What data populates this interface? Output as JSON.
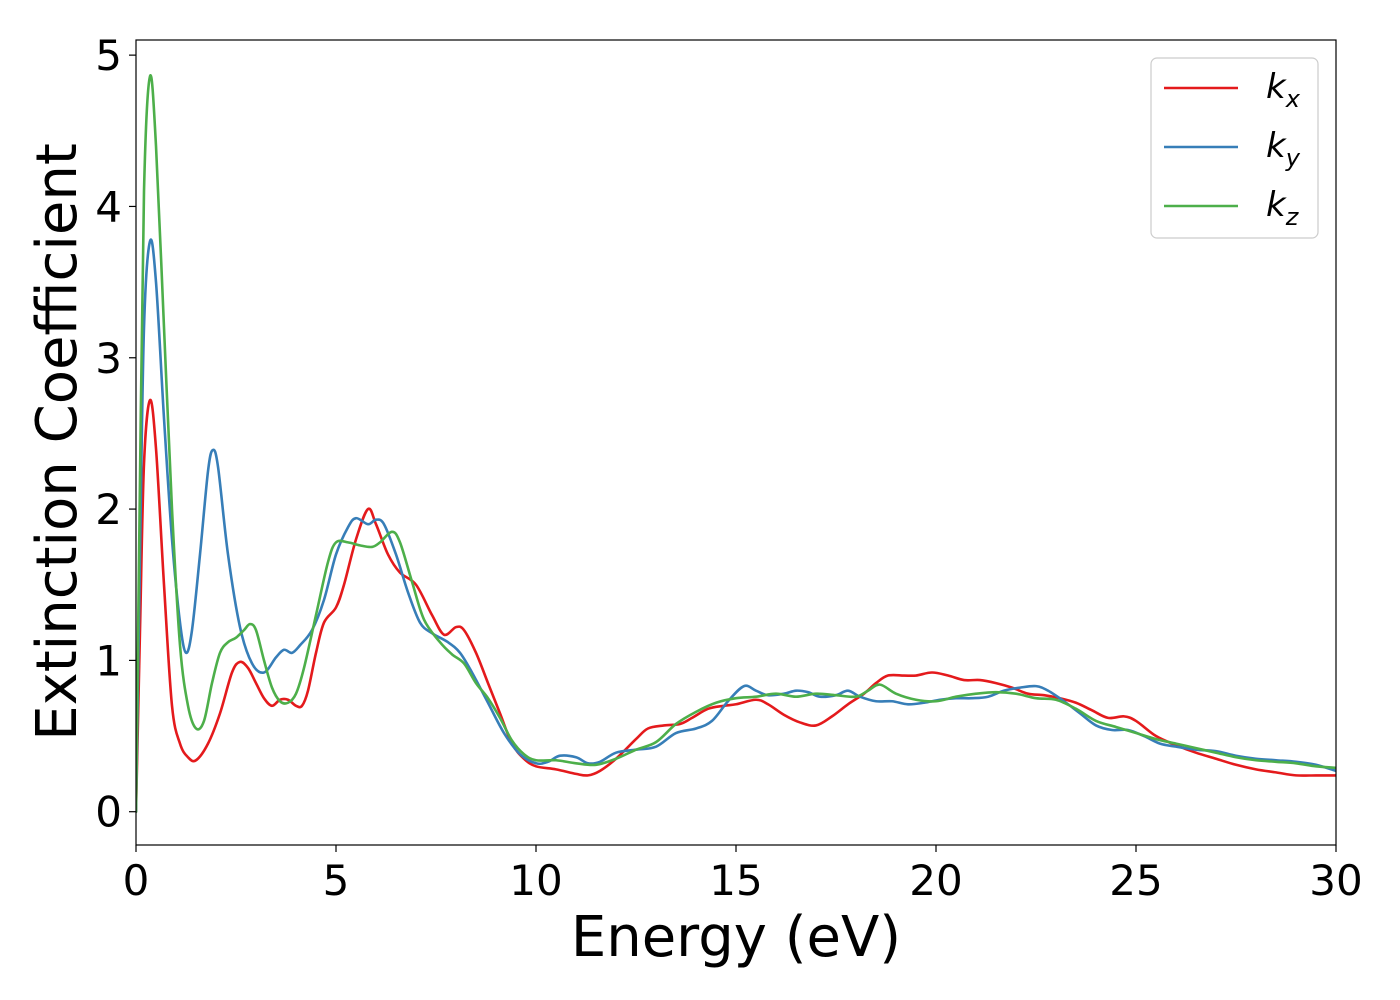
{
  "chart_data": {
    "type": "line",
    "xlabel": "Energy (eV)",
    "ylabel": "Extinction Coefficient",
    "xlim": [
      0,
      30
    ],
    "ylim": [
      -0.22,
      5.1
    ],
    "x_ticks": [
      "0",
      "5",
      "10",
      "15",
      "20",
      "25",
      "30"
    ],
    "y_ticks": [
      "0",
      "1",
      "2",
      "3",
      "4",
      "5"
    ],
    "grid": false,
    "legend_position": "top-right",
    "series": [
      {
        "name": "k",
        "subscript": "x",
        "color": "#e41a1c",
        "points": [
          [
            0,
            0
          ],
          [
            0.1,
            1.2
          ],
          [
            0.2,
            2.3
          ],
          [
            0.35,
            2.72
          ],
          [
            0.5,
            2.4
          ],
          [
            0.7,
            1.5
          ],
          [
            0.9,
            0.7
          ],
          [
            1.1,
            0.45
          ],
          [
            1.3,
            0.36
          ],
          [
            1.5,
            0.34
          ],
          [
            1.8,
            0.45
          ],
          [
            2.1,
            0.65
          ],
          [
            2.4,
            0.92
          ],
          [
            2.6,
            0.99
          ],
          [
            2.8,
            0.95
          ],
          [
            3.0,
            0.85
          ],
          [
            3.2,
            0.75
          ],
          [
            3.4,
            0.7
          ],
          [
            3.6,
            0.74
          ],
          [
            3.8,
            0.74
          ],
          [
            4.0,
            0.7
          ],
          [
            4.15,
            0.7
          ],
          [
            4.3,
            0.8
          ],
          [
            4.5,
            1.05
          ],
          [
            4.7,
            1.25
          ],
          [
            5.0,
            1.35
          ],
          [
            5.2,
            1.5
          ],
          [
            5.5,
            1.8
          ],
          [
            5.8,
            2.0
          ],
          [
            6.0,
            1.9
          ],
          [
            6.3,
            1.7
          ],
          [
            6.6,
            1.58
          ],
          [
            7.0,
            1.5
          ],
          [
            7.4,
            1.3
          ],
          [
            7.7,
            1.17
          ],
          [
            8.0,
            1.22
          ],
          [
            8.2,
            1.2
          ],
          [
            8.5,
            1.05
          ],
          [
            8.8,
            0.85
          ],
          [
            9.1,
            0.65
          ],
          [
            9.4,
            0.45
          ],
          [
            9.7,
            0.35
          ],
          [
            10.0,
            0.3
          ],
          [
            10.5,
            0.28
          ],
          [
            11.0,
            0.25
          ],
          [
            11.3,
            0.24
          ],
          [
            11.6,
            0.27
          ],
          [
            12.0,
            0.35
          ],
          [
            12.5,
            0.48
          ],
          [
            12.8,
            0.55
          ],
          [
            13.2,
            0.57
          ],
          [
            13.6,
            0.58
          ],
          [
            13.9,
            0.62
          ],
          [
            14.3,
            0.68
          ],
          [
            14.7,
            0.7
          ],
          [
            15.0,
            0.71
          ],
          [
            15.5,
            0.74
          ],
          [
            15.8,
            0.71
          ],
          [
            16.2,
            0.64
          ],
          [
            16.6,
            0.59
          ],
          [
            17.0,
            0.57
          ],
          [
            17.4,
            0.63
          ],
          [
            17.8,
            0.71
          ],
          [
            18.2,
            0.78
          ],
          [
            18.5,
            0.85
          ],
          [
            18.8,
            0.9
          ],
          [
            19.2,
            0.9
          ],
          [
            19.5,
            0.9
          ],
          [
            19.9,
            0.92
          ],
          [
            20.3,
            0.9
          ],
          [
            20.7,
            0.87
          ],
          [
            21.1,
            0.87
          ],
          [
            21.5,
            0.85
          ],
          [
            21.9,
            0.82
          ],
          [
            22.3,
            0.78
          ],
          [
            22.7,
            0.77
          ],
          [
            23.1,
            0.75
          ],
          [
            23.5,
            0.72
          ],
          [
            23.9,
            0.67
          ],
          [
            24.3,
            0.62
          ],
          [
            24.7,
            0.63
          ],
          [
            25.0,
            0.6
          ],
          [
            25.5,
            0.5
          ],
          [
            26.0,
            0.44
          ],
          [
            26.5,
            0.39
          ],
          [
            27.0,
            0.35
          ],
          [
            27.5,
            0.31
          ],
          [
            28.0,
            0.28
          ],
          [
            28.5,
            0.26
          ],
          [
            29.0,
            0.24
          ],
          [
            29.5,
            0.24
          ],
          [
            30.0,
            0.24
          ]
        ]
      },
      {
        "name": "k",
        "subscript": "y",
        "color": "#377eb8",
        "points": [
          [
            0,
            0
          ],
          [
            0.1,
            1.7
          ],
          [
            0.2,
            3.2
          ],
          [
            0.35,
            3.77
          ],
          [
            0.5,
            3.5
          ],
          [
            0.7,
            2.6
          ],
          [
            0.9,
            1.8
          ],
          [
            1.1,
            1.25
          ],
          [
            1.25,
            1.05
          ],
          [
            1.4,
            1.2
          ],
          [
            1.6,
            1.7
          ],
          [
            1.8,
            2.25
          ],
          [
            1.92,
            2.39
          ],
          [
            2.05,
            2.28
          ],
          [
            2.3,
            1.7
          ],
          [
            2.6,
            1.22
          ],
          [
            2.9,
            0.98
          ],
          [
            3.2,
            0.92
          ],
          [
            3.5,
            1.02
          ],
          [
            3.7,
            1.07
          ],
          [
            3.9,
            1.05
          ],
          [
            4.1,
            1.1
          ],
          [
            4.4,
            1.2
          ],
          [
            4.7,
            1.4
          ],
          [
            5.0,
            1.7
          ],
          [
            5.3,
            1.88
          ],
          [
            5.5,
            1.94
          ],
          [
            5.8,
            1.9
          ],
          [
            6.0,
            1.93
          ],
          [
            6.2,
            1.9
          ],
          [
            6.5,
            1.7
          ],
          [
            6.8,
            1.45
          ],
          [
            7.1,
            1.25
          ],
          [
            7.4,
            1.18
          ],
          [
            7.8,
            1.12
          ],
          [
            8.1,
            1.05
          ],
          [
            8.4,
            0.92
          ],
          [
            8.8,
            0.72
          ],
          [
            9.2,
            0.52
          ],
          [
            9.6,
            0.38
          ],
          [
            10.0,
            0.32
          ],
          [
            10.3,
            0.33
          ],
          [
            10.6,
            0.37
          ],
          [
            11.0,
            0.36
          ],
          [
            11.3,
            0.32
          ],
          [
            11.6,
            0.33
          ],
          [
            12.0,
            0.39
          ],
          [
            12.5,
            0.41
          ],
          [
            13.0,
            0.43
          ],
          [
            13.5,
            0.52
          ],
          [
            14.0,
            0.55
          ],
          [
            14.4,
            0.6
          ],
          [
            14.8,
            0.73
          ],
          [
            15.2,
            0.83
          ],
          [
            15.5,
            0.8
          ],
          [
            15.8,
            0.77
          ],
          [
            16.2,
            0.78
          ],
          [
            16.5,
            0.8
          ],
          [
            16.8,
            0.79
          ],
          [
            17.1,
            0.76
          ],
          [
            17.5,
            0.77
          ],
          [
            17.8,
            0.8
          ],
          [
            18.1,
            0.76
          ],
          [
            18.5,
            0.73
          ],
          [
            18.9,
            0.73
          ],
          [
            19.3,
            0.71
          ],
          [
            19.7,
            0.72
          ],
          [
            20.1,
            0.74
          ],
          [
            20.5,
            0.75
          ],
          [
            20.9,
            0.75
          ],
          [
            21.3,
            0.76
          ],
          [
            21.7,
            0.8
          ],
          [
            22.1,
            0.82
          ],
          [
            22.5,
            0.83
          ],
          [
            22.8,
            0.8
          ],
          [
            23.2,
            0.73
          ],
          [
            23.6,
            0.65
          ],
          [
            24.0,
            0.57
          ],
          [
            24.4,
            0.54
          ],
          [
            24.8,
            0.54
          ],
          [
            25.2,
            0.5
          ],
          [
            25.6,
            0.45
          ],
          [
            26.0,
            0.43
          ],
          [
            26.5,
            0.41
          ],
          [
            27.0,
            0.4
          ],
          [
            27.5,
            0.37
          ],
          [
            28.0,
            0.35
          ],
          [
            28.5,
            0.34
          ],
          [
            29.0,
            0.33
          ],
          [
            29.5,
            0.31
          ],
          [
            30.0,
            0.27
          ]
        ]
      },
      {
        "name": "k",
        "subscript": "z",
        "color": "#4daf4a",
        "points": [
          [
            0,
            0
          ],
          [
            0.1,
            2.2
          ],
          [
            0.2,
            4.1
          ],
          [
            0.35,
            4.86
          ],
          [
            0.5,
            4.4
          ],
          [
            0.7,
            3.2
          ],
          [
            0.9,
            2.0
          ],
          [
            1.1,
            1.1
          ],
          [
            1.3,
            0.7
          ],
          [
            1.5,
            0.55
          ],
          [
            1.7,
            0.6
          ],
          [
            1.9,
            0.85
          ],
          [
            2.1,
            1.05
          ],
          [
            2.3,
            1.12
          ],
          [
            2.5,
            1.15
          ],
          [
            2.7,
            1.2
          ],
          [
            2.85,
            1.24
          ],
          [
            3.0,
            1.2
          ],
          [
            3.2,
            1.0
          ],
          [
            3.4,
            0.82
          ],
          [
            3.6,
            0.73
          ],
          [
            3.8,
            0.72
          ],
          [
            4.0,
            0.78
          ],
          [
            4.2,
            0.95
          ],
          [
            4.5,
            1.3
          ],
          [
            4.8,
            1.65
          ],
          [
            5.0,
            1.78
          ],
          [
            5.3,
            1.78
          ],
          [
            5.6,
            1.76
          ],
          [
            5.9,
            1.75
          ],
          [
            6.1,
            1.78
          ],
          [
            6.4,
            1.85
          ],
          [
            6.6,
            1.78
          ],
          [
            6.9,
            1.52
          ],
          [
            7.2,
            1.27
          ],
          [
            7.6,
            1.12
          ],
          [
            7.9,
            1.04
          ],
          [
            8.2,
            0.98
          ],
          [
            8.5,
            0.85
          ],
          [
            8.8,
            0.75
          ],
          [
            9.1,
            0.62
          ],
          [
            9.4,
            0.47
          ],
          [
            9.7,
            0.38
          ],
          [
            10.0,
            0.34
          ],
          [
            10.5,
            0.34
          ],
          [
            11.0,
            0.32
          ],
          [
            11.5,
            0.31
          ],
          [
            12.0,
            0.35
          ],
          [
            12.5,
            0.41
          ],
          [
            13.0,
            0.46
          ],
          [
            13.5,
            0.58
          ],
          [
            14.0,
            0.66
          ],
          [
            14.5,
            0.72
          ],
          [
            15.0,
            0.75
          ],
          [
            15.5,
            0.76
          ],
          [
            16.0,
            0.78
          ],
          [
            16.5,
            0.76
          ],
          [
            17.0,
            0.78
          ],
          [
            17.5,
            0.77
          ],
          [
            18.0,
            0.76
          ],
          [
            18.3,
            0.8
          ],
          [
            18.6,
            0.84
          ],
          [
            19.0,
            0.78
          ],
          [
            19.5,
            0.74
          ],
          [
            20.0,
            0.73
          ],
          [
            20.5,
            0.76
          ],
          [
            21.0,
            0.78
          ],
          [
            21.5,
            0.79
          ],
          [
            22.0,
            0.78
          ],
          [
            22.5,
            0.75
          ],
          [
            23.0,
            0.74
          ],
          [
            23.5,
            0.68
          ],
          [
            24.0,
            0.6
          ],
          [
            24.5,
            0.56
          ],
          [
            25.0,
            0.52
          ],
          [
            25.5,
            0.48
          ],
          [
            26.0,
            0.45
          ],
          [
            26.5,
            0.42
          ],
          [
            27.0,
            0.39
          ],
          [
            27.5,
            0.36
          ],
          [
            28.0,
            0.34
          ],
          [
            28.5,
            0.33
          ],
          [
            29.0,
            0.32
          ],
          [
            29.5,
            0.3
          ],
          [
            30.0,
            0.29
          ]
        ]
      }
    ]
  }
}
